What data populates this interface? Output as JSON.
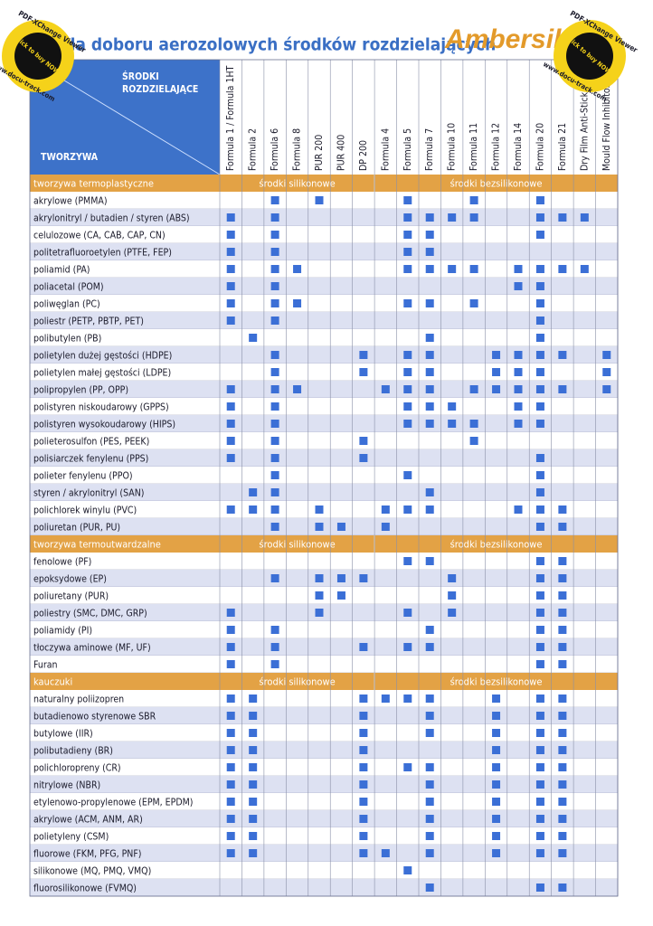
{
  "title": "Tabela doboru aerozolowych środków rozdzielających",
  "logo": "Ambersil",
  "header": {
    "corner_top": [
      "ŚRODKI",
      "ROZDZIELAJĄCE"
    ],
    "corner_bottom": "TWORZYWA",
    "columns": [
      "Formula 1 / Formula 1HT",
      "Formula 2",
      "Formula 6",
      "Formula 8",
      "PUR 200",
      "PUR 400",
      "DP 200",
      "Formula 4",
      "Formula 5",
      "Formula 7",
      "Formula 10",
      "Formula 11",
      "Formula 12",
      "Formula 14",
      "Formula 20",
      "Formula 21",
      "Dry Film Anti-Stick",
      "Mould Flow Inhibitor"
    ]
  },
  "sections": [
    {
      "name": "tworzywa termoplastyczne",
      "silicone": "środki silikonowe",
      "nonsilicone": "środki bezsilikonowe",
      "rows": [
        {
          "label": "akrylowe (PMMA)",
          "marks": [
            2,
            4,
            8,
            11,
            14
          ]
        },
        {
          "label": "akrylonitryl / butadien / styren (ABS)",
          "marks": [
            0,
            2,
            8,
            9,
            10,
            11,
            14,
            15,
            16
          ]
        },
        {
          "label": "celulozowe (CA, CAB, CAP, CN)",
          "marks": [
            0,
            2,
            8,
            9,
            14
          ]
        },
        {
          "label": "politetrafluoroetylen (PTFE, FEP)",
          "marks": [
            0,
            2,
            8,
            9
          ]
        },
        {
          "label": "poliamid (PA)",
          "marks": [
            0,
            2,
            3,
            8,
            9,
            10,
            11,
            13,
            14,
            15,
            16
          ]
        },
        {
          "label": "poliacetal (POM)",
          "marks": [
            0,
            2,
            13,
            14
          ]
        },
        {
          "label": "poliwęglan (PC)",
          "marks": [
            0,
            2,
            3,
            8,
            9,
            11,
            14
          ]
        },
        {
          "label": "poliestr (PETP, PBTP, PET)",
          "marks": [
            0,
            2,
            14
          ]
        },
        {
          "label": "polibutylen (PB)",
          "marks": [
            1,
            9,
            14
          ]
        },
        {
          "label": "polietylen dużej gęstości (HDPE)",
          "marks": [
            2,
            6,
            8,
            9,
            12,
            13,
            14,
            15,
            17
          ]
        },
        {
          "label": "polietylen małej gęstości (LDPE)",
          "marks": [
            2,
            6,
            8,
            9,
            12,
            13,
            14,
            17
          ]
        },
        {
          "label": "polipropylen (PP, OPP)",
          "marks": [
            0,
            2,
            3,
            7,
            8,
            9,
            11,
            12,
            13,
            14,
            15,
            17
          ]
        },
        {
          "label": "polistyren niskoudarowy (GPPS)",
          "marks": [
            0,
            2,
            8,
            9,
            10,
            13,
            14
          ]
        },
        {
          "label": "polistyren wysokoudarowy (HIPS)",
          "marks": [
            0,
            2,
            8,
            9,
            10,
            11,
            13,
            14
          ]
        },
        {
          "label": "polieterosulfon (PES, PEEK)",
          "marks": [
            0,
            2,
            6,
            11
          ]
        },
        {
          "label": "polisiarczek fenylenu (PPS)",
          "marks": [
            0,
            2,
            6,
            14
          ]
        },
        {
          "label": "polieter fenylenu (PPO)",
          "marks": [
            2,
            8,
            14
          ]
        },
        {
          "label": "styren / akrylonitryl (SAN)",
          "marks": [
            1,
            2,
            9,
            14
          ]
        },
        {
          "label": "polichlorek winylu (PVC)",
          "marks": [
            0,
            1,
            2,
            4,
            7,
            8,
            9,
            13,
            14,
            15
          ]
        },
        {
          "label": "poliuretan (PUR, PU)",
          "marks": [
            2,
            4,
            5,
            7,
            14,
            15
          ]
        }
      ]
    },
    {
      "name": "tworzywa termoutwardzalne",
      "silicone": "środki silikonowe",
      "nonsilicone": "środki bezsilikonowe",
      "rows": [
        {
          "label": "fenolowe (PF)",
          "marks": [
            8,
            9,
            14,
            15
          ]
        },
        {
          "label": "epoksydowe (EP)",
          "marks": [
            2,
            4,
            5,
            6,
            10,
            14,
            15
          ]
        },
        {
          "label": "poliuretany (PUR)",
          "marks": [
            4,
            5,
            10,
            14,
            15
          ]
        },
        {
          "label": "poliestry (SMC, DMC, GRP)",
          "marks": [
            0,
            4,
            8,
            10,
            14,
            15
          ]
        },
        {
          "label": "poliamidy (PI)",
          "marks": [
            0,
            2,
            9,
            14,
            15
          ]
        },
        {
          "label": "tłoczywa aminowe (MF, UF)",
          "marks": [
            0,
            2,
            6,
            8,
            9,
            14,
            15
          ]
        },
        {
          "label": "Furan",
          "marks": [
            0,
            2,
            14,
            15
          ]
        }
      ]
    },
    {
      "name": "kauczuki",
      "silicone": "środki silikonowe",
      "nonsilicone": "środki bezsilikonowe",
      "rows": [
        {
          "label": "naturalny poliizopren",
          "marks": [
            0,
            1,
            6,
            7,
            8,
            9,
            12,
            14,
            15
          ]
        },
        {
          "label": "butadienowo styrenowe SBR",
          "marks": [
            0,
            1,
            6,
            9,
            12,
            14,
            15
          ]
        },
        {
          "label": "butylowe (IIR)",
          "marks": [
            0,
            1,
            6,
            9,
            12,
            14,
            15
          ]
        },
        {
          "label": "polibutadieny (BR)",
          "marks": [
            0,
            1,
            6,
            12,
            14,
            15
          ]
        },
        {
          "label": "polichloropreny (CR)",
          "marks": [
            0,
            1,
            6,
            8,
            9,
            12,
            14,
            15
          ]
        },
        {
          "label": "nitrylowe (NBR)",
          "marks": [
            0,
            1,
            6,
            9,
            12,
            14,
            15
          ]
        },
        {
          "label": "etylenowo-propylenowe (EPM, EPDM)",
          "marks": [
            0,
            1,
            6,
            9,
            12,
            14,
            15
          ]
        },
        {
          "label": "akrylowe (ACM, ANM, AR)",
          "marks": [
            0,
            1,
            6,
            9,
            12,
            14,
            15
          ]
        },
        {
          "label": "polietyleny (CSM)",
          "marks": [
            0,
            1,
            6,
            9,
            12,
            14,
            15
          ]
        },
        {
          "label": "fluorowe (FKM, PFG, PNF)",
          "marks": [
            0,
            1,
            6,
            7,
            9,
            12,
            14,
            15
          ]
        },
        {
          "label": "silikonowe (MQ, PMQ, VMQ)",
          "marks": [
            8
          ]
        },
        {
          "label": "fluorosilikonowe (FVMQ)",
          "marks": [
            9,
            14,
            15
          ]
        }
      ]
    }
  ],
  "watermark": {
    "top": "PDF-XChange Viewer",
    "middle": "Click to buy NOW!",
    "bottom": "www.docu-track.com"
  }
}
